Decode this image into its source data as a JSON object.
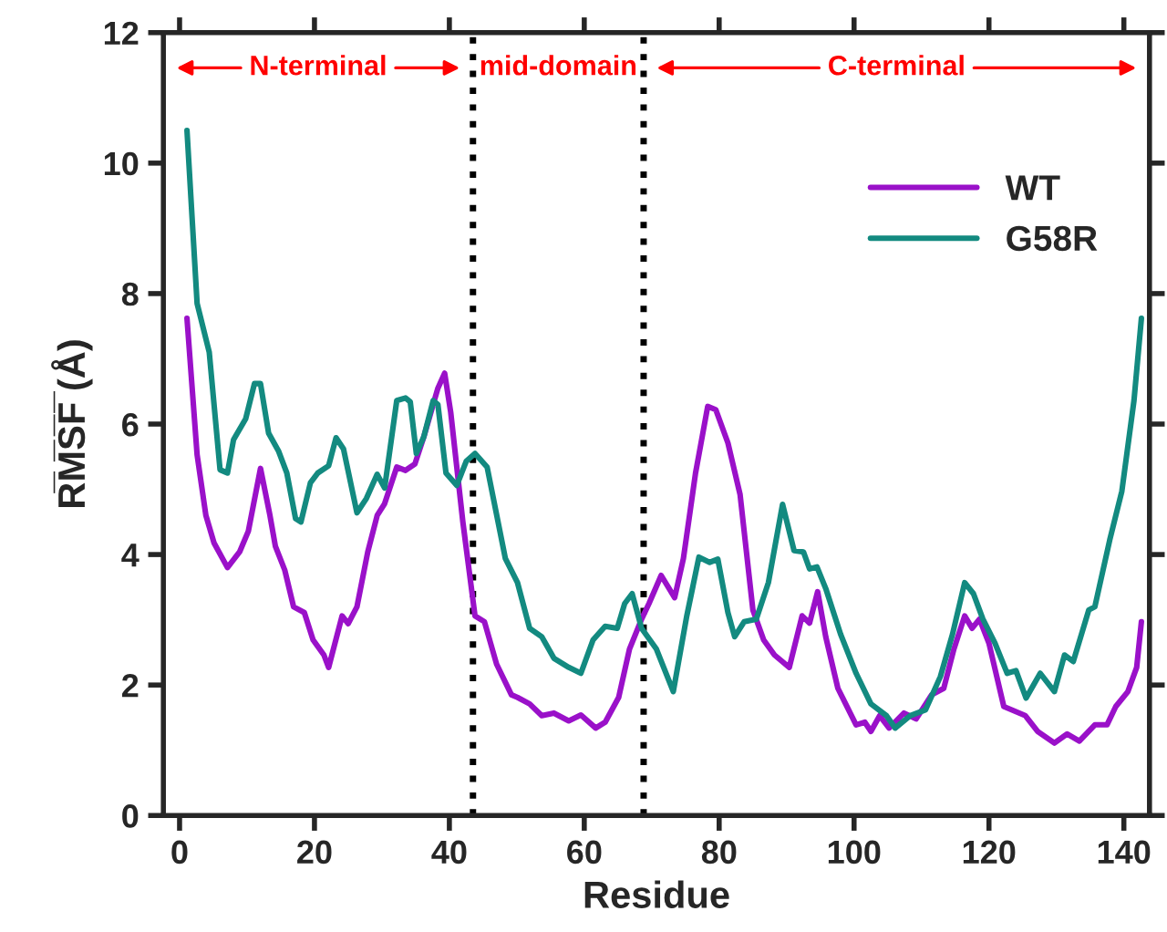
{
  "chart_data": {
    "type": "line",
    "xlabel": "Residue",
    "ylabel": "R̅M̅S̅F̅ (Å)",
    "xlim": [
      -2.4,
      143.8
    ],
    "ylim": [
      0,
      12
    ],
    "xticks": [
      0,
      20,
      40,
      60,
      80,
      100,
      120,
      140
    ],
    "yticks": [
      0,
      2,
      4,
      6,
      8,
      10,
      12
    ],
    "grid": false,
    "legend": "top right",
    "marker": "none",
    "line_style": "solid",
    "ref_lines": [
      {
        "axis": "x",
        "value": 43.5,
        "color": "#000000",
        "line_style": "dotted"
      },
      {
        "axis": "x",
        "value": 68.8,
        "color": "#000000",
        "line_style": "dotted"
      }
    ],
    "annotations": [
      "N-terminal",
      "mid-domain",
      "C-terminal"
    ],
    "series": [
      {
        "name": "WT",
        "color": "#9a11c9",
        "x": [
          1.1,
          2.6,
          3.9,
          5.1,
          7.1,
          8.9,
          10.2,
          12.0,
          13.4,
          14.2,
          15.6,
          16.9,
          18.5,
          19.8,
          21.4,
          22.1,
          24.1,
          25.0,
          26.3,
          27.9,
          29.3,
          30.4,
          32.2,
          33.5,
          34.9,
          36.2,
          38.3,
          39.3,
          40.2,
          42.0,
          43.8,
          45.2,
          47.0,
          49.2,
          50.1,
          51.9,
          53.7,
          55.5,
          57.7,
          59.5,
          61.7,
          63.1,
          65.1,
          66.7,
          68.5,
          69.6,
          71.4,
          73.4,
          74.7,
          76.5,
          78.3,
          79.5,
          81.3,
          83.1,
          85.0,
          86.6,
          88.2,
          90.4,
          92.3,
          93.4,
          94.6,
          95.8,
          97.6,
          100.3,
          101.6,
          102.5,
          103.8,
          105.2,
          107.4,
          109.2,
          111.5,
          113.3,
          114.8,
          116.4,
          117.5,
          118.6,
          120.0,
          122.2,
          125.4,
          127.2,
          129.7,
          131.6,
          133.4,
          135.7,
          137.5,
          138.8,
          140.6,
          141.9,
          142.6
        ],
        "values": [
          7.62,
          5.53,
          4.6,
          4.18,
          3.8,
          4.04,
          4.36,
          5.32,
          4.6,
          4.13,
          3.76,
          3.2,
          3.11,
          2.69,
          2.46,
          2.27,
          3.06,
          2.94,
          3.2,
          4.04,
          4.6,
          4.78,
          5.34,
          5.29,
          5.39,
          5.8,
          6.55,
          6.78,
          6.18,
          4.5,
          3.06,
          2.97,
          2.32,
          1.85,
          1.81,
          1.71,
          1.53,
          1.57,
          1.45,
          1.54,
          1.34,
          1.43,
          1.81,
          2.55,
          3.01,
          3.25,
          3.68,
          3.34,
          3.94,
          5.25,
          6.27,
          6.22,
          5.71,
          4.92,
          3.15,
          2.69,
          2.46,
          2.27,
          3.06,
          2.95,
          3.43,
          2.74,
          1.95,
          1.39,
          1.43,
          1.29,
          1.53,
          1.34,
          1.57,
          1.48,
          1.85,
          1.95,
          2.55,
          3.06,
          2.87,
          3.01,
          2.64,
          1.67,
          1.53,
          1.29,
          1.11,
          1.25,
          1.14,
          1.39,
          1.39,
          1.67,
          1.9,
          2.27,
          2.97
        ]
      },
      {
        "name": "G58R",
        "color": "#138a80",
        "x": [
          1.1,
          2.6,
          4.4,
          6.0,
          7.1,
          8.0,
          9.8,
          11.1,
          12.0,
          13.2,
          14.7,
          15.9,
          17.2,
          18.0,
          19.4,
          20.5,
          22.1,
          23.2,
          24.3,
          26.3,
          27.7,
          29.3,
          30.4,
          32.2,
          33.5,
          34.2,
          35.1,
          36.2,
          37.6,
          38.3,
          39.5,
          41.1,
          42.5,
          43.8,
          45.6,
          48.3,
          50.1,
          51.9,
          53.7,
          55.5,
          57.7,
          59.5,
          61.3,
          63.1,
          64.9,
          66.0,
          67.1,
          68.5,
          70.7,
          73.2,
          75.2,
          77.0,
          78.6,
          79.8,
          81.3,
          82.3,
          83.7,
          85.5,
          87.3,
          89.4,
          91.1,
          92.5,
          93.4,
          94.5,
          95.8,
          98.0,
          100.3,
          102.5,
          104.8,
          106.1,
          108.3,
          110.6,
          112.8,
          114.6,
          116.4,
          117.7,
          119.1,
          120.9,
          122.7,
          124.0,
          125.5,
          127.6,
          129.7,
          131.2,
          132.5,
          134.8,
          135.7,
          137.9,
          139.7,
          141.5,
          142.6
        ],
        "values": [
          10.5,
          7.85,
          7.1,
          5.3,
          5.25,
          5.76,
          6.08,
          6.62,
          6.62,
          5.86,
          5.58,
          5.25,
          4.55,
          4.5,
          5.1,
          5.25,
          5.36,
          5.79,
          5.62,
          4.64,
          4.86,
          5.23,
          5.02,
          6.36,
          6.4,
          6.34,
          5.55,
          5.8,
          6.36,
          6.3,
          5.25,
          5.06,
          5.43,
          5.55,
          5.34,
          3.94,
          3.57,
          2.87,
          2.74,
          2.41,
          2.27,
          2.18,
          2.69,
          2.9,
          2.87,
          3.25,
          3.4,
          2.87,
          2.55,
          1.9,
          3.06,
          3.96,
          3.88,
          3.93,
          3.11,
          2.74,
          2.97,
          3.01,
          3.57,
          4.77,
          4.06,
          4.04,
          3.78,
          3.81,
          3.48,
          2.78,
          2.18,
          1.71,
          1.53,
          1.34,
          1.53,
          1.62,
          2.13,
          2.78,
          3.57,
          3.4,
          3.01,
          2.64,
          2.18,
          2.22,
          1.8,
          2.18,
          1.9,
          2.46,
          2.36,
          3.15,
          3.2,
          4.22,
          4.97,
          6.36,
          7.62
        ]
      }
    ]
  }
}
